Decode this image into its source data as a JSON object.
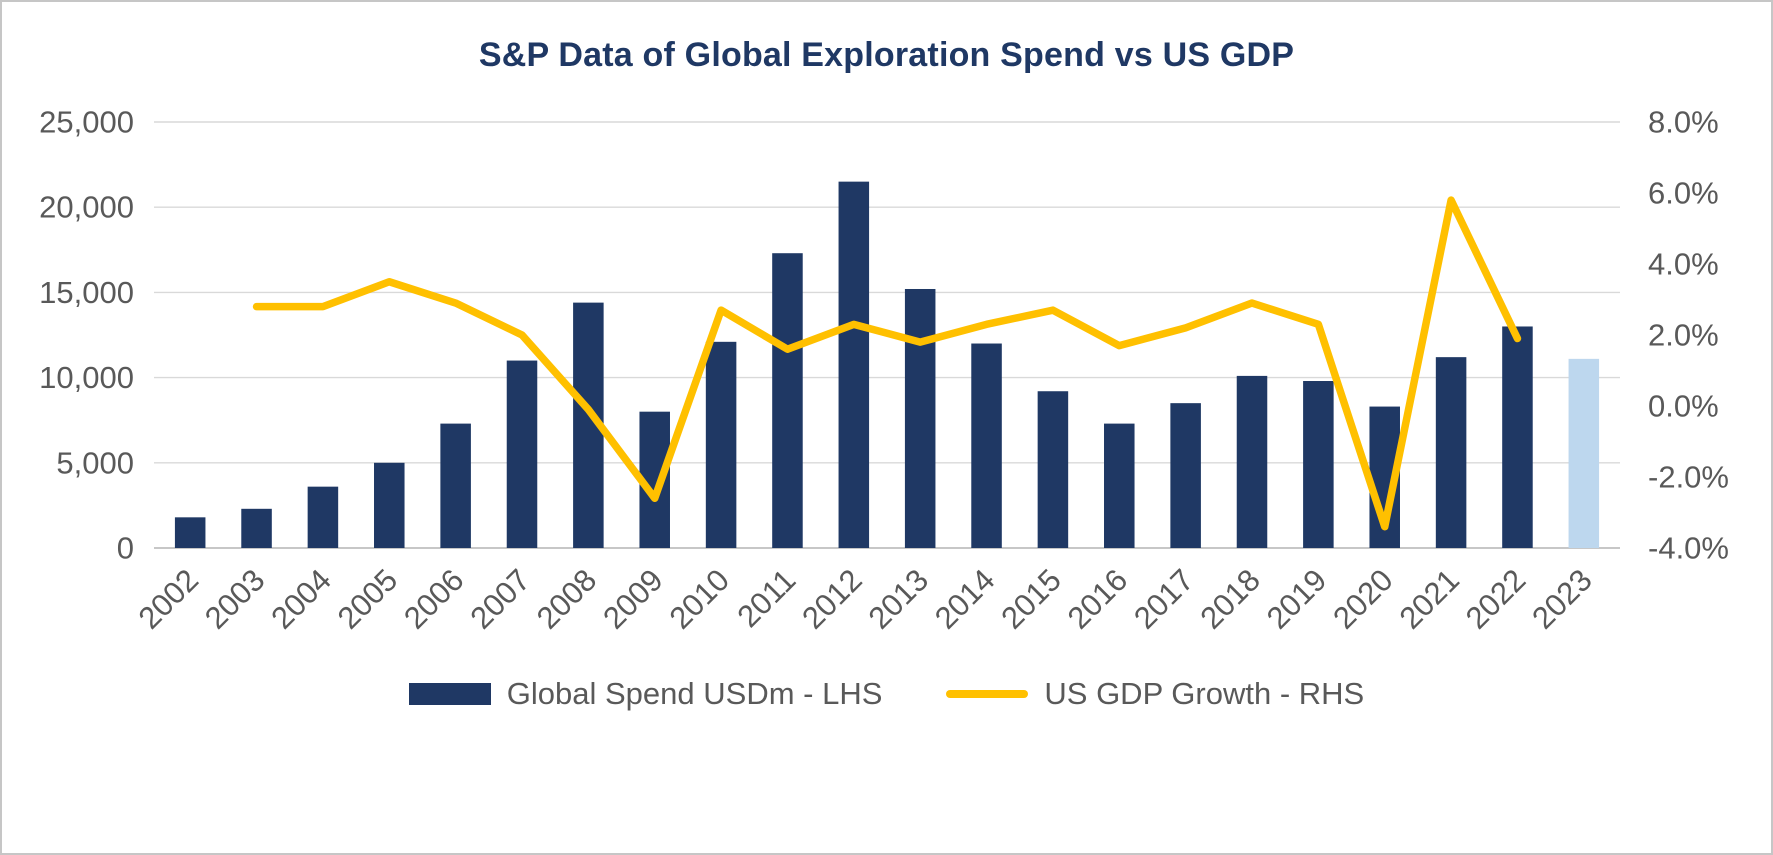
{
  "chart_data": {
    "type": "combo",
    "title": "S&P Data of Global Exploration Spend vs US GDP",
    "categories": [
      "2002",
      "2003",
      "2004",
      "2005",
      "2006",
      "2007",
      "2008",
      "2009",
      "2010",
      "2011",
      "2012",
      "2013",
      "2014",
      "2015",
      "2016",
      "2017",
      "2018",
      "2019",
      "2020",
      "2021",
      "2022",
      "2023"
    ],
    "bar_series": {
      "name": "Global Spend USDm - LHS",
      "axis": "left",
      "color": "#1F3864",
      "values": [
        1800,
        2300,
        3600,
        5000,
        7300,
        11000,
        14400,
        8000,
        12100,
        17300,
        21500,
        15200,
        12000,
        9200,
        7300,
        8500,
        10100,
        9800,
        8300,
        11200,
        13000,
        11100
      ],
      "highlight": {
        "index": 21,
        "color": "#BDD7EE",
        "note": "2023 bar shown in light blue"
      }
    },
    "line_series": {
      "name": "US GDP Growth - RHS",
      "axis": "right",
      "color": "#FFC000",
      "x": [
        "2003",
        "2004",
        "2005",
        "2006",
        "2007",
        "2008",
        "2009",
        "2010",
        "2011",
        "2012",
        "2013",
        "2014",
        "2015",
        "2016",
        "2017",
        "2018",
        "2019",
        "2020",
        "2021",
        "2022"
      ],
      "values": [
        2.8,
        2.8,
        3.5,
        2.9,
        2.0,
        -0.1,
        -2.6,
        2.7,
        1.6,
        2.3,
        1.8,
        2.3,
        2.7,
        1.7,
        2.2,
        2.9,
        2.3,
        -3.4,
        5.8,
        1.9
      ]
    },
    "left_axis": {
      "min": 0,
      "max": 25000,
      "tick_values": [
        0,
        5000,
        10000,
        15000,
        20000,
        25000
      ],
      "ticks": [
        "0",
        "5,000",
        "10,000",
        "15,000",
        "20,000",
        "25,000"
      ]
    },
    "right_axis": {
      "min": -4,
      "max": 8,
      "tick_values": [
        -4,
        -2,
        0,
        2,
        4,
        6,
        8
      ],
      "ticks": [
        "-4.0%",
        "-2.0%",
        "0.0%",
        "2.0%",
        "4.0%",
        "6.0%",
        "8.0%"
      ]
    },
    "grid": true,
    "legend_position": "bottom",
    "colors": {
      "title": "#1F3864",
      "text": "#595959",
      "gridline": "#D9D9D9",
      "axis_line": "#BFBFBF"
    }
  }
}
